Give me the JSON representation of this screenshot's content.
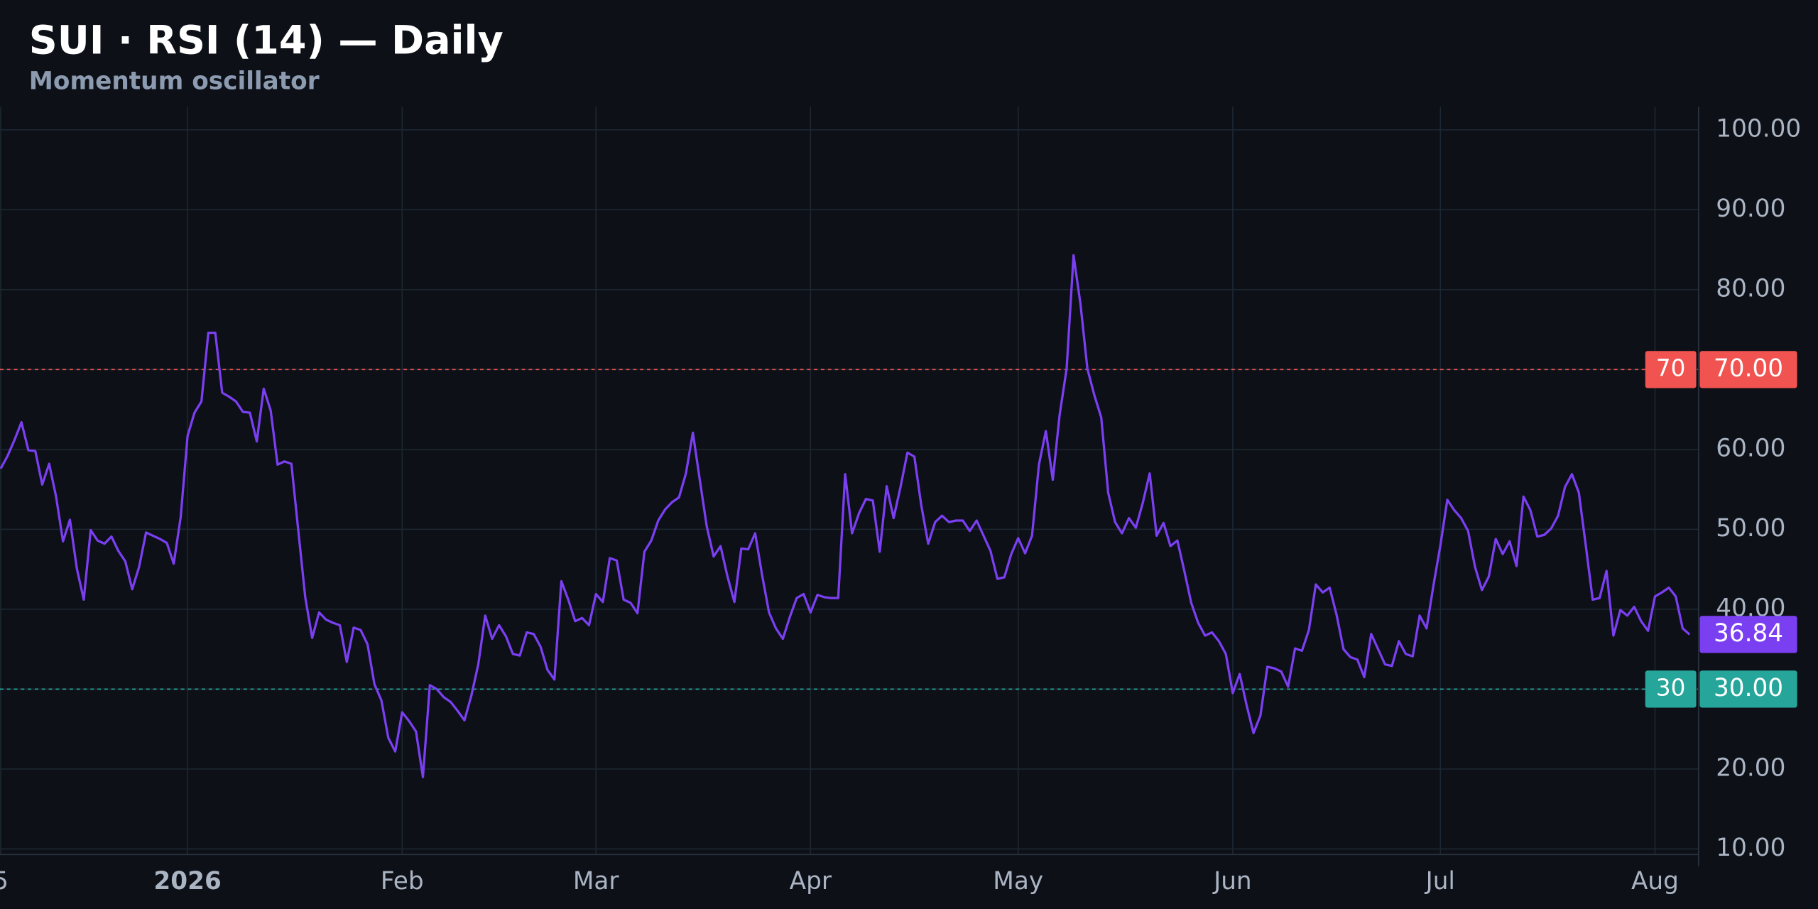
{
  "chart_data": {
    "type": "line",
    "title": "SUI · RSI (14) — Daily",
    "subtitle": "Momentum oscillator",
    "x": [
      -27,
      -26,
      -25,
      -24,
      -23,
      -22,
      -21,
      -20,
      -19,
      -18,
      -17,
      -16,
      -15,
      -14,
      -13,
      -12,
      -11,
      -10,
      -9,
      -8,
      -7,
      -6,
      -5,
      -4,
      -3,
      -2,
      -1,
      0,
      1,
      2,
      3,
      4,
      5,
      6,
      7,
      8,
      9,
      10,
      11,
      12,
      13,
      14,
      15,
      16,
      17,
      18,
      19,
      20,
      21,
      22,
      23,
      24,
      25,
      26,
      27,
      28,
      29,
      30,
      31,
      32,
      33,
      34,
      35,
      36,
      37,
      38,
      39,
      40,
      41,
      42,
      43,
      44,
      45,
      46,
      47,
      48,
      49,
      50,
      51,
      52,
      53,
      54,
      55,
      56,
      57,
      58,
      59,
      60,
      61,
      62,
      63,
      64,
      65,
      66,
      67,
      68,
      69,
      70,
      71,
      72,
      73,
      74,
      75,
      76,
      77,
      78,
      79,
      80,
      81,
      82,
      83,
      84,
      85,
      86,
      87,
      88,
      89,
      90,
      91,
      92,
      93,
      94,
      95,
      96,
      97,
      98,
      99,
      100,
      101,
      102,
      103,
      104,
      105,
      106,
      107,
      108,
      109,
      110,
      111,
      112,
      113,
      114,
      115,
      116,
      117,
      118,
      119,
      120,
      121,
      122,
      123,
      124,
      125,
      126,
      127,
      128,
      129,
      130,
      131,
      132,
      133,
      134,
      135,
      136,
      137,
      138,
      139,
      140,
      141,
      142,
      143,
      144,
      145,
      146,
      147,
      148,
      149,
      150,
      151,
      152,
      153,
      154,
      155,
      156,
      157,
      158,
      159,
      160,
      161,
      162,
      163,
      164,
      165,
      166,
      167,
      168,
      169,
      170,
      171,
      172,
      173,
      174,
      175,
      176,
      177,
      178,
      179,
      180,
      181,
      182,
      183,
      184,
      185,
      186,
      187,
      188,
      189,
      190,
      191,
      192,
      193,
      194,
      195,
      196,
      197,
      198,
      199,
      200,
      201,
      202,
      203,
      204,
      205,
      206,
      207,
      208,
      209,
      210,
      211,
      212,
      213,
      214,
      215,
      216,
      217
    ],
    "series": [
      {
        "name": "RSI (14)",
        "color": "#7b3ff2",
        "values": [
          57.6,
          59.2,
          61.2,
          63.4,
          59.9,
          59.8,
          55.6,
          58.2,
          54.1,
          48.5,
          51.2,
          45.1,
          41.2,
          49.9,
          48.6,
          48.2,
          49.1,
          47.3,
          46.0,
          42.5,
          45.3,
          49.6,
          49.2,
          48.8,
          48.3,
          45.7,
          51.5,
          61.7,
          64.6,
          66.0,
          74.6,
          74.6,
          67.1,
          66.6,
          66.0,
          64.7,
          64.6,
          61.0,
          67.6,
          64.9,
          58.1,
          58.5,
          58.2,
          49.8,
          41.5,
          36.4,
          39.6,
          38.7,
          38.3,
          38.0,
          33.4,
          37.7,
          37.4,
          35.6,
          30.6,
          28.6,
          23.9,
          22.2,
          27.1,
          26.0,
          24.7,
          19.0,
          30.5,
          30.0,
          29.0,
          28.4,
          27.3,
          26.1,
          29.2,
          33.1,
          39.2,
          36.3,
          38.0,
          36.6,
          34.4,
          34.2,
          37.1,
          36.9,
          35.3,
          32.4,
          31.2,
          43.5,
          41.2,
          38.5,
          38.9,
          38.0,
          41.9,
          40.9,
          46.4,
          46.1,
          41.2,
          40.8,
          39.5,
          47.2,
          48.6,
          51.1,
          52.5,
          53.4,
          54.0,
          57.0,
          62.1,
          56.2,
          50.4,
          46.6,
          47.9,
          44.1,
          40.9,
          47.6,
          47.5,
          49.5,
          44.3,
          39.6,
          37.6,
          36.3,
          39.0,
          41.4,
          41.9,
          39.6,
          41.8,
          41.5,
          41.4,
          41.4,
          56.9,
          49.5,
          52.0,
          53.8,
          53.6,
          47.2,
          55.4,
          51.4,
          55.3,
          59.6,
          59.1,
          53.0,
          48.2,
          50.9,
          51.7,
          50.9,
          51.1,
          51.1,
          49.8,
          51.1,
          49.2,
          47.3,
          43.8,
          44.0,
          46.9,
          48.9,
          47.0,
          49.2,
          58.1,
          62.3,
          56.2,
          64.4,
          70.1,
          84.3,
          78.2,
          70.1,
          66.8,
          64.0,
          54.6,
          50.9,
          49.5,
          51.4,
          50.2,
          53.3,
          57.0,
          49.2,
          50.8,
          47.9,
          48.6,
          44.8,
          40.8,
          38.3,
          36.7,
          37.1,
          36.0,
          34.4,
          29.5,
          31.9,
          28.0,
          24.5,
          26.7,
          32.8,
          32.6,
          32.2,
          30.3,
          35.1,
          34.8,
          37.4,
          43.1,
          42.1,
          42.7,
          39.3,
          35.0,
          34.0,
          33.7,
          31.5,
          36.9,
          35.0,
          33.1,
          32.9,
          36.0,
          34.4,
          34.1,
          39.2,
          37.6,
          43.0,
          48.0,
          53.7,
          52.4,
          51.4,
          49.8,
          45.3,
          42.4,
          44.1,
          48.8,
          46.9,
          48.5,
          45.4,
          54.1,
          52.4,
          49.1,
          49.3,
          50.1,
          51.7,
          55.3,
          56.9,
          54.6,
          48.0,
          41.2,
          41.4,
          44.8,
          36.7,
          39.9,
          39.2,
          40.3,
          38.5,
          37.3,
          41.6,
          42.1,
          42.7,
          41.6,
          37.6,
          36.84
        ]
      }
    ],
    "levels": [
      {
        "value": 70,
        "label": "70",
        "axis_label": "70.00",
        "color": "#f05350"
      },
      {
        "value": 30,
        "label": "30",
        "axis_label": "30.00",
        "color": "#26a69a"
      }
    ],
    "xlim": [
      -27.1,
      218.3
    ],
    "xticks": [
      {
        "value": -27,
        "label": "5"
      },
      {
        "value": 0,
        "label": "2026"
      },
      {
        "value": 31,
        "label": "Feb"
      },
      {
        "value": 59,
        "label": "Mar"
      },
      {
        "value": 90,
        "label": "Apr"
      },
      {
        "value": 120,
        "label": "May"
      },
      {
        "value": 151,
        "label": "Jun"
      },
      {
        "value": 181,
        "label": "Jul"
      },
      {
        "value": 212,
        "label": "Aug"
      }
    ],
    "ylim": [
      9.3,
      102.9
    ],
    "yticks": [
      {
        "value": 10,
        "label": "10.00"
      },
      {
        "value": 20,
        "label": "20.00"
      },
      {
        "value": 30,
        "label": "30.00"
      },
      {
        "value": 40,
        "label": "40.00"
      },
      {
        "value": 50,
        "label": "50.00"
      },
      {
        "value": 60,
        "label": "60.00"
      },
      {
        "value": 70,
        "label": "70.00"
      },
      {
        "value": 80,
        "label": "80.00"
      },
      {
        "value": 90,
        "label": "90.00"
      },
      {
        "value": 100,
        "label": "100.00"
      }
    ],
    "grid": true
  }
}
